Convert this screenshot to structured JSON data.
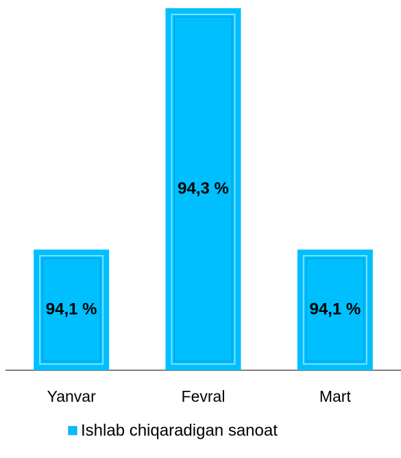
{
  "chart_data": {
    "type": "bar",
    "categories": [
      "Yanvar",
      "Fevral",
      "Mart"
    ],
    "series": [
      {
        "name": "Ishlab chiqaradigan sanoat",
        "color": "#00bfff",
        "values": [
          94.1,
          94.3,
          94.1
        ],
        "value_labels": [
          "94,1 %",
          "94,3 %",
          "94,1 %"
        ]
      }
    ],
    "ylim": [
      94.0,
      94.3
    ]
  }
}
